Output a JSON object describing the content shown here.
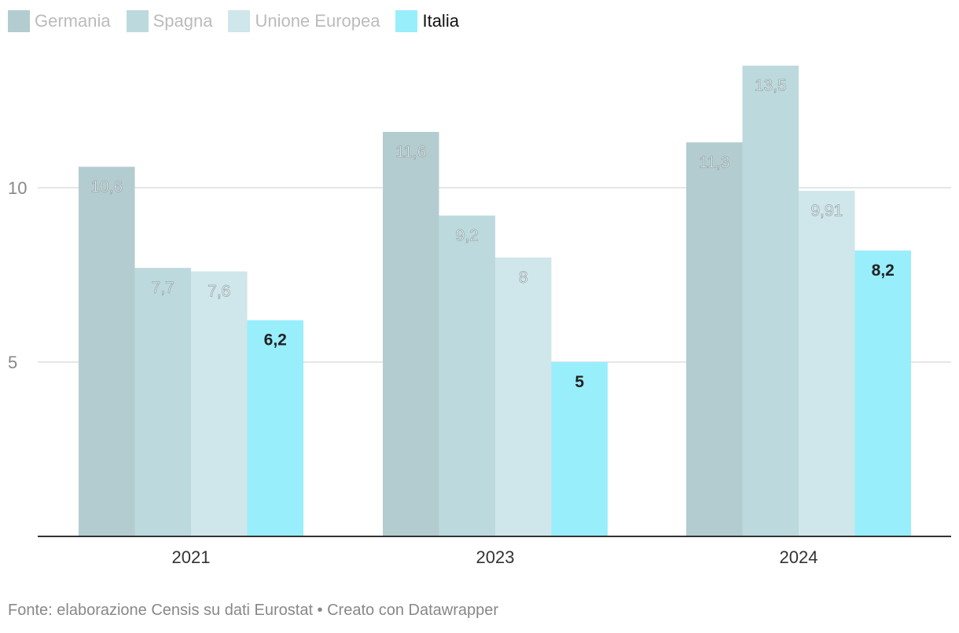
{
  "chart_data": {
    "type": "bar",
    "title": "",
    "xlabel": "",
    "ylabel": "",
    "categories": [
      "2021",
      "2023",
      "2024"
    ],
    "series": [
      {
        "name": "Germania",
        "values": [
          10.6,
          11.6,
          11.3
        ],
        "labels": [
          "10,6",
          "11,6",
          "11,3"
        ],
        "color": "#b3cccf",
        "highlight": false
      },
      {
        "name": "Spagna",
        "values": [
          7.7,
          9.2,
          13.5
        ],
        "labels": [
          "7,7",
          "9,2",
          "13,5"
        ],
        "color": "#bcdadd",
        "highlight": false
      },
      {
        "name": "Unione Europea",
        "values": [
          7.6,
          8,
          9.91
        ],
        "labels": [
          "7,6",
          "8",
          "9,91"
        ],
        "color": "#cfe6ea",
        "highlight": false
      },
      {
        "name": "Italia",
        "values": [
          6.2,
          5,
          8.2
        ],
        "labels": [
          "6,2",
          "5",
          "8,2"
        ],
        "color": "#99eefc",
        "highlight": true
      }
    ],
    "ylim": [
      0,
      15
    ],
    "yticks": [
      5,
      10
    ],
    "ytick_labels": [
      "5",
      "10"
    ],
    "grid": true,
    "legend": "top-left"
  },
  "footer": {
    "source": "Fonte: elaborazione Censis su dati Eurostat • Creato con Datawrapper"
  },
  "colors": {
    "muted_text": "#bbbbbb",
    "dark_text": "#222222",
    "axis": "#333333",
    "grid": "#dddddd"
  }
}
